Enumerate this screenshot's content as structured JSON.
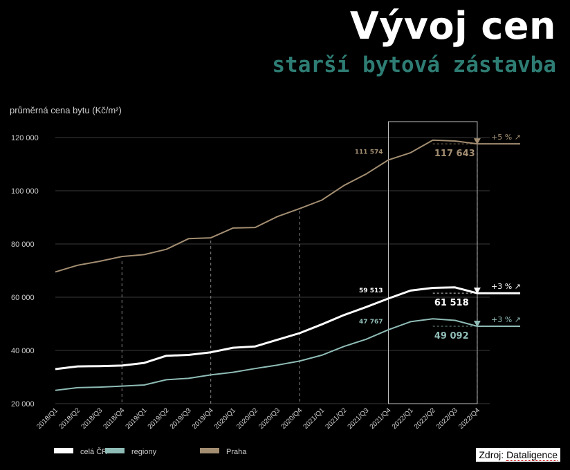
{
  "header": {
    "title": "Vývoj cen",
    "subtitle": "starší bytová zástavba"
  },
  "source": {
    "prefix": "Zdroj:",
    "name": "Dataligence"
  },
  "colors": {
    "background": "#000000",
    "cela_cr": "#ffffff",
    "regiony": "#8fbcb6",
    "praha": "#a38e72",
    "grid": "#3a3a3a",
    "text": "#cfcfcf"
  },
  "chart_data": {
    "type": "line",
    "ylabel": "průměrná cena bytu (Kč/m²)",
    "ylim": [
      20000,
      125000
    ],
    "yticks": [
      20000,
      40000,
      60000,
      80000,
      100000,
      120000
    ],
    "ytick_labels": [
      "20 000",
      "40 000",
      "60 000",
      "80 000",
      "100 000",
      "120 000"
    ],
    "grid": "horizontal",
    "categories": [
      "2018/Q1",
      "2018/Q2",
      "2018/Q3",
      "2018/Q4",
      "2019/Q1",
      "2019/Q2",
      "2019/Q3",
      "2019/Q4",
      "2020/Q1",
      "2020/Q2",
      "2020/Q3",
      "2020/Q4",
      "2021/Q1",
      "2021/Q2",
      "2021/Q3",
      "2021/Q4",
      "2022/Q1",
      "2022/Q2",
      "2022/Q3",
      "2022/Q4"
    ],
    "series": [
      {
        "name": "celá ČR",
        "color": "#ffffff",
        "values": [
          33000,
          34000,
          34100,
          34300,
          35300,
          38000,
          38300,
          39300,
          41000,
          41500,
          44000,
          46500,
          49800,
          53300,
          56300,
          59513,
          62500,
          63500,
          63700,
          61518
        ]
      },
      {
        "name": "regiony",
        "color": "#8fbcb6",
        "values": [
          25000,
          26000,
          26200,
          26600,
          27000,
          29000,
          29500,
          30800,
          31800,
          33200,
          34500,
          36000,
          38200,
          41500,
          44200,
          47767,
          50800,
          51900,
          51300,
          49092
        ]
      },
      {
        "name": "Praha",
        "color": "#a38e72",
        "values": [
          69500,
          72000,
          73500,
          75300,
          76000,
          78000,
          82000,
          82300,
          86000,
          86200,
          90300,
          93300,
          96500,
          102000,
          106300,
          111574,
          114300,
          119000,
          118700,
          117643
        ]
      }
    ],
    "highlight_range": [
      "2021/Q4",
      "2022/Q4"
    ],
    "dashed_markers": [
      "2018/Q4",
      "2019/Q4",
      "2020/Q4",
      "2021/Q4",
      "2022/Q4"
    ],
    "annotations": [
      {
        "series": "Praha",
        "category": "2021/Q4",
        "label": "111 574"
      },
      {
        "series": "Praha",
        "category": "2022/Q4",
        "label": "117 643"
      },
      {
        "series": "celá ČR",
        "category": "2021/Q4",
        "label": "59 513"
      },
      {
        "series": "celá ČR",
        "category": "2022/Q4",
        "label": "61 518"
      },
      {
        "series": "regiony",
        "category": "2021/Q4",
        "label": "47 767"
      },
      {
        "series": "regiony",
        "category": "2022/Q4",
        "label": "49 092"
      }
    ],
    "change_labels": [
      {
        "series": "Praha",
        "label": "+5 %"
      },
      {
        "series": "celá ČR",
        "label": "+3 %"
      },
      {
        "series": "regiony",
        "label": "+3 %"
      }
    ],
    "legend": {
      "placement": "bottom-left",
      "entries": [
        "celá ČR",
        "regiony",
        "Praha"
      ]
    }
  }
}
